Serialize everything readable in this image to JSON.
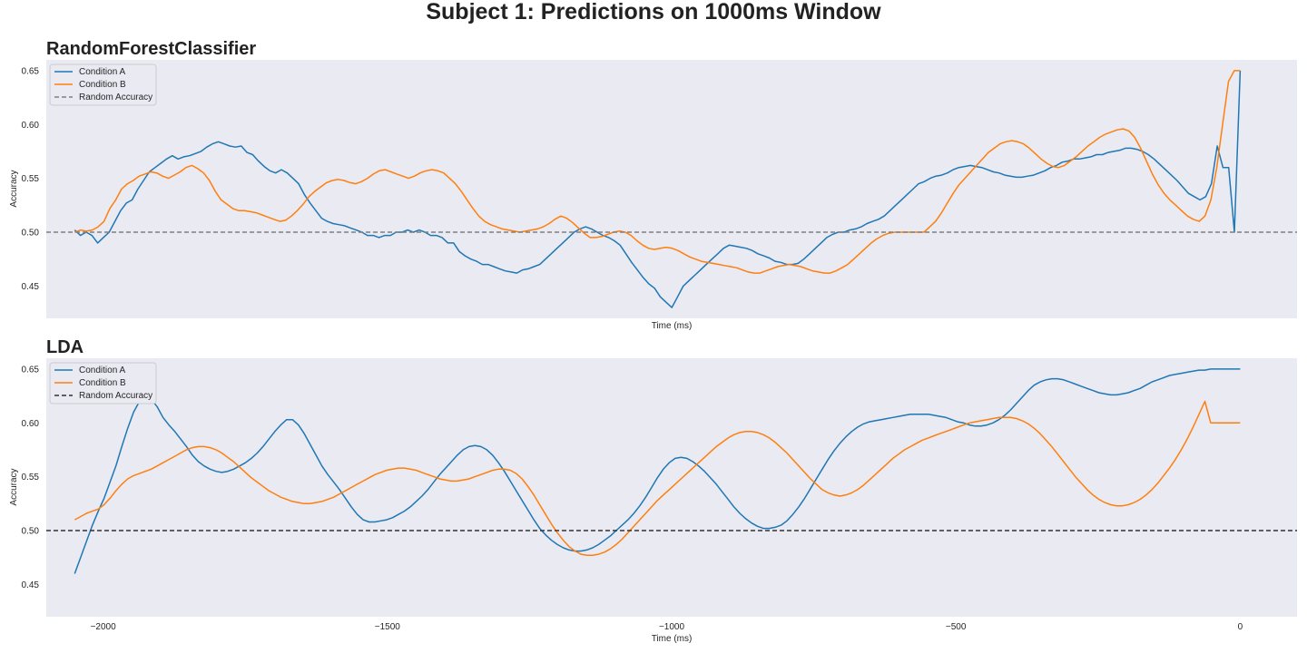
{
  "suptitle": "Subject 1: Predictions on 1000ms Window",
  "colors": {
    "condition_a": "#1f77b4",
    "condition_b": "#ff7f0e",
    "random_top": "#808080",
    "random_bottom": "#333333",
    "panel_bg": "#eaeaf2"
  },
  "chart_data": [
    {
      "type": "line",
      "title": "RandomForestClassifier",
      "xlabel": "Time (ms)",
      "ylabel": "Accuracy",
      "xlim": [
        -2100,
        100
      ],
      "ylim": [
        0.42,
        0.66
      ],
      "yticks": [
        "0.45",
        "0.50",
        "0.55",
        "0.60",
        "0.65"
      ],
      "ytick_values": [
        0.45,
        0.5,
        0.55,
        0.6,
        0.65
      ],
      "xticks": [],
      "legend_position": "top-left",
      "grid": false,
      "x_start": -2050,
      "x_end": 0,
      "series": [
        {
          "name": "Condition A",
          "color_key": "condition_a",
          "values": [
            0.502,
            0.497,
            0.5,
            0.497,
            0.49,
            0.495,
            0.5,
            0.51,
            0.52,
            0.527,
            0.53,
            0.54,
            0.548,
            0.556,
            0.56,
            0.564,
            0.568,
            0.571,
            0.568,
            0.57,
            0.571,
            0.573,
            0.575,
            0.579,
            0.582,
            0.584,
            0.582,
            0.58,
            0.579,
            0.58,
            0.574,
            0.572,
            0.566,
            0.561,
            0.557,
            0.555,
            0.558,
            0.555,
            0.55,
            0.545,
            0.535,
            0.527,
            0.52,
            0.513,
            0.51,
            0.508,
            0.507,
            0.506,
            0.504,
            0.502,
            0.5,
            0.497,
            0.497,
            0.495,
            0.497,
            0.497,
            0.5,
            0.5,
            0.502,
            0.5,
            0.502,
            0.5,
            0.497,
            0.497,
            0.495,
            0.49,
            0.49,
            0.482,
            0.478,
            0.475,
            0.473,
            0.47,
            0.47,
            0.468,
            0.466,
            0.464,
            0.463,
            0.462,
            0.465,
            0.466,
            0.468,
            0.47,
            0.475,
            0.48,
            0.485,
            0.49,
            0.495,
            0.5,
            0.503,
            0.505,
            0.503,
            0.5,
            0.497,
            0.495,
            0.492,
            0.488,
            0.48,
            0.472,
            0.465,
            0.458,
            0.452,
            0.448,
            0.44,
            0.435,
            0.43,
            0.44,
            0.45,
            0.455,
            0.46,
            0.465,
            0.47,
            0.475,
            0.48,
            0.485,
            0.488,
            0.487,
            0.486,
            0.485,
            0.483,
            0.48,
            0.478,
            0.476,
            0.473,
            0.472,
            0.47,
            0.47,
            0.471,
            0.475,
            0.48,
            0.485,
            0.49,
            0.495,
            0.498,
            0.5,
            0.5,
            0.502,
            0.503,
            0.505,
            0.508,
            0.51,
            0.512,
            0.515,
            0.52,
            0.525,
            0.53,
            0.535,
            0.54,
            0.545,
            0.547,
            0.55,
            0.552,
            0.553,
            0.555,
            0.558,
            0.56,
            0.561,
            0.562,
            0.561,
            0.56,
            0.558,
            0.556,
            0.555,
            0.553,
            0.552,
            0.551,
            0.551,
            0.552,
            0.553,
            0.555,
            0.557,
            0.56,
            0.562,
            0.565,
            0.566,
            0.568,
            0.568,
            0.569,
            0.57,
            0.572,
            0.572,
            0.574,
            0.575,
            0.576,
            0.578,
            0.578,
            0.577,
            0.575,
            0.572,
            0.568,
            0.563,
            0.558,
            0.553,
            0.548,
            0.542,
            0.536,
            0.533,
            0.53,
            0.533,
            0.545,
            0.58,
            0.56,
            0.56,
            0.5,
            0.65
          ]
        },
        {
          "name": "Condition B",
          "color_key": "condition_b",
          "values": [
            0.5,
            0.502,
            0.501,
            0.502,
            0.505,
            0.51,
            0.522,
            0.53,
            0.54,
            0.545,
            0.548,
            0.552,
            0.554,
            0.556,
            0.555,
            0.552,
            0.55,
            0.553,
            0.556,
            0.56,
            0.562,
            0.559,
            0.555,
            0.548,
            0.538,
            0.53,
            0.526,
            0.522,
            0.52,
            0.52,
            0.519,
            0.518,
            0.516,
            0.514,
            0.512,
            0.51,
            0.511,
            0.515,
            0.52,
            0.526,
            0.533,
            0.538,
            0.542,
            0.546,
            0.548,
            0.549,
            0.548,
            0.546,
            0.545,
            0.547,
            0.55,
            0.554,
            0.557,
            0.558,
            0.556,
            0.554,
            0.552,
            0.55,
            0.552,
            0.555,
            0.557,
            0.558,
            0.557,
            0.555,
            0.55,
            0.545,
            0.538,
            0.53,
            0.522,
            0.515,
            0.51,
            0.507,
            0.505,
            0.503,
            0.502,
            0.501,
            0.5,
            0.501,
            0.502,
            0.503,
            0.505,
            0.508,
            0.512,
            0.515,
            0.513,
            0.509,
            0.504,
            0.499,
            0.495,
            0.495,
            0.496,
            0.498,
            0.5,
            0.501,
            0.5,
            0.497,
            0.492,
            0.488,
            0.485,
            0.484,
            0.485,
            0.486,
            0.485,
            0.483,
            0.48,
            0.477,
            0.475,
            0.473,
            0.472,
            0.471,
            0.47,
            0.469,
            0.468,
            0.467,
            0.465,
            0.463,
            0.462,
            0.462,
            0.464,
            0.466,
            0.468,
            0.469,
            0.47,
            0.469,
            0.468,
            0.466,
            0.464,
            0.463,
            0.462,
            0.462,
            0.464,
            0.467,
            0.47,
            0.475,
            0.48,
            0.485,
            0.49,
            0.494,
            0.497,
            0.499,
            0.5,
            0.5,
            0.5,
            0.5,
            0.5,
            0.5,
            0.505,
            0.51,
            0.518,
            0.527,
            0.536,
            0.544,
            0.55,
            0.556,
            0.562,
            0.568,
            0.574,
            0.578,
            0.582,
            0.584,
            0.585,
            0.584,
            0.582,
            0.578,
            0.573,
            0.568,
            0.564,
            0.561,
            0.56,
            0.562,
            0.566,
            0.57,
            0.575,
            0.58,
            0.584,
            0.588,
            0.591,
            0.593,
            0.595,
            0.596,
            0.594,
            0.588,
            0.578,
            0.566,
            0.554,
            0.544,
            0.536,
            0.53,
            0.525,
            0.52,
            0.515,
            0.512,
            0.51,
            0.515,
            0.53,
            0.56,
            0.6,
            0.64,
            0.65,
            0.65
          ]
        },
        {
          "name": "Random Accuracy",
          "color_key": "random_top",
          "dashed": true,
          "constant": 0.5
        }
      ]
    },
    {
      "type": "line",
      "title": "LDA",
      "xlabel": "Time (ms)",
      "ylabel": "Accuracy",
      "xlim": [
        -2100,
        100
      ],
      "ylim": [
        0.42,
        0.66
      ],
      "yticks": [
        "0.45",
        "0.50",
        "0.55",
        "0.60",
        "0.65"
      ],
      "ytick_values": [
        0.45,
        0.5,
        0.55,
        0.6,
        0.65
      ],
      "xticks": [
        "−2000",
        "−1500",
        "−1000",
        "−500",
        "0"
      ],
      "xtick_values": [
        -2000,
        -1500,
        -1000,
        -500,
        0
      ],
      "legend_position": "top-left",
      "grid": false,
      "x_start": -2050,
      "x_end": 0,
      "series": [
        {
          "name": "Condition A",
          "color_key": "condition_a",
          "values": [
            0.46,
            0.475,
            0.49,
            0.505,
            0.518,
            0.53,
            0.545,
            0.56,
            0.578,
            0.595,
            0.61,
            0.62,
            0.625,
            0.622,
            0.615,
            0.605,
            0.598,
            0.592,
            0.585,
            0.578,
            0.57,
            0.564,
            0.56,
            0.557,
            0.555,
            0.554,
            0.555,
            0.557,
            0.56,
            0.563,
            0.567,
            0.572,
            0.578,
            0.585,
            0.592,
            0.598,
            0.603,
            0.603,
            0.598,
            0.59,
            0.58,
            0.57,
            0.56,
            0.552,
            0.545,
            0.538,
            0.53,
            0.522,
            0.515,
            0.51,
            0.508,
            0.508,
            0.509,
            0.51,
            0.512,
            0.515,
            0.518,
            0.522,
            0.527,
            0.532,
            0.538,
            0.545,
            0.552,
            0.558,
            0.564,
            0.57,
            0.575,
            0.578,
            0.579,
            0.578,
            0.575,
            0.57,
            0.563,
            0.555,
            0.546,
            0.537,
            0.528,
            0.519,
            0.51,
            0.502,
            0.496,
            0.491,
            0.487,
            0.484,
            0.482,
            0.481,
            0.481,
            0.482,
            0.484,
            0.487,
            0.491,
            0.495,
            0.5,
            0.505,
            0.51,
            0.516,
            0.523,
            0.531,
            0.54,
            0.549,
            0.557,
            0.563,
            0.567,
            0.568,
            0.567,
            0.564,
            0.56,
            0.555,
            0.549,
            0.543,
            0.536,
            0.529,
            0.522,
            0.516,
            0.511,
            0.507,
            0.504,
            0.502,
            0.502,
            0.503,
            0.505,
            0.509,
            0.515,
            0.522,
            0.53,
            0.539,
            0.548,
            0.557,
            0.566,
            0.574,
            0.581,
            0.587,
            0.592,
            0.596,
            0.599,
            0.601,
            0.602,
            0.603,
            0.604,
            0.605,
            0.606,
            0.607,
            0.608,
            0.608,
            0.608,
            0.608,
            0.607,
            0.606,
            0.605,
            0.603,
            0.601,
            0.6,
            0.598,
            0.597,
            0.597,
            0.598,
            0.6,
            0.603,
            0.607,
            0.612,
            0.618,
            0.624,
            0.63,
            0.635,
            0.638,
            0.64,
            0.641,
            0.641,
            0.64,
            0.638,
            0.636,
            0.634,
            0.632,
            0.63,
            0.628,
            0.627,
            0.626,
            0.626,
            0.627,
            0.628,
            0.63,
            0.632,
            0.635,
            0.638,
            0.64,
            0.642,
            0.644,
            0.645,
            0.646,
            0.647,
            0.648,
            0.649,
            0.649,
            0.65,
            0.65,
            0.65,
            0.65,
            0.65,
            0.65
          ]
        },
        {
          "name": "Condition B",
          "color_key": "condition_b",
          "values": [
            0.51,
            0.513,
            0.516,
            0.518,
            0.52,
            0.524,
            0.53,
            0.537,
            0.543,
            0.548,
            0.551,
            0.553,
            0.555,
            0.557,
            0.56,
            0.563,
            0.566,
            0.569,
            0.572,
            0.575,
            0.577,
            0.578,
            0.578,
            0.577,
            0.575,
            0.572,
            0.568,
            0.564,
            0.559,
            0.554,
            0.549,
            0.545,
            0.541,
            0.537,
            0.534,
            0.531,
            0.529,
            0.527,
            0.526,
            0.525,
            0.525,
            0.526,
            0.527,
            0.529,
            0.531,
            0.534,
            0.537,
            0.54,
            0.543,
            0.546,
            0.549,
            0.552,
            0.554,
            0.556,
            0.557,
            0.558,
            0.558,
            0.557,
            0.556,
            0.554,
            0.552,
            0.55,
            0.548,
            0.547,
            0.546,
            0.546,
            0.547,
            0.548,
            0.55,
            0.552,
            0.554,
            0.556,
            0.557,
            0.557,
            0.556,
            0.553,
            0.548,
            0.541,
            0.533,
            0.524,
            0.515,
            0.506,
            0.498,
            0.491,
            0.485,
            0.481,
            0.478,
            0.477,
            0.477,
            0.478,
            0.48,
            0.483,
            0.487,
            0.492,
            0.498,
            0.504,
            0.51,
            0.516,
            0.522,
            0.528,
            0.533,
            0.538,
            0.543,
            0.548,
            0.553,
            0.558,
            0.563,
            0.568,
            0.573,
            0.578,
            0.582,
            0.586,
            0.589,
            0.591,
            0.592,
            0.592,
            0.591,
            0.589,
            0.586,
            0.582,
            0.577,
            0.572,
            0.566,
            0.56,
            0.554,
            0.548,
            0.543,
            0.538,
            0.535,
            0.533,
            0.532,
            0.533,
            0.535,
            0.538,
            0.542,
            0.547,
            0.552,
            0.557,
            0.562,
            0.567,
            0.571,
            0.575,
            0.578,
            0.581,
            0.584,
            0.586,
            0.588,
            0.59,
            0.592,
            0.594,
            0.596,
            0.598,
            0.6,
            0.601,
            0.602,
            0.603,
            0.604,
            0.605,
            0.605,
            0.605,
            0.604,
            0.602,
            0.599,
            0.595,
            0.59,
            0.584,
            0.578,
            0.571,
            0.564,
            0.557,
            0.55,
            0.544,
            0.538,
            0.533,
            0.529,
            0.526,
            0.524,
            0.523,
            0.523,
            0.524,
            0.526,
            0.529,
            0.533,
            0.538,
            0.544,
            0.551,
            0.558,
            0.566,
            0.575,
            0.585,
            0.596,
            0.608,
            0.62,
            0.6,
            0.6,
            0.6,
            0.6,
            0.6,
            0.6
          ]
        },
        {
          "name": "Random Accuracy",
          "color_key": "random_bottom",
          "dashed": true,
          "constant": 0.5
        }
      ]
    }
  ]
}
